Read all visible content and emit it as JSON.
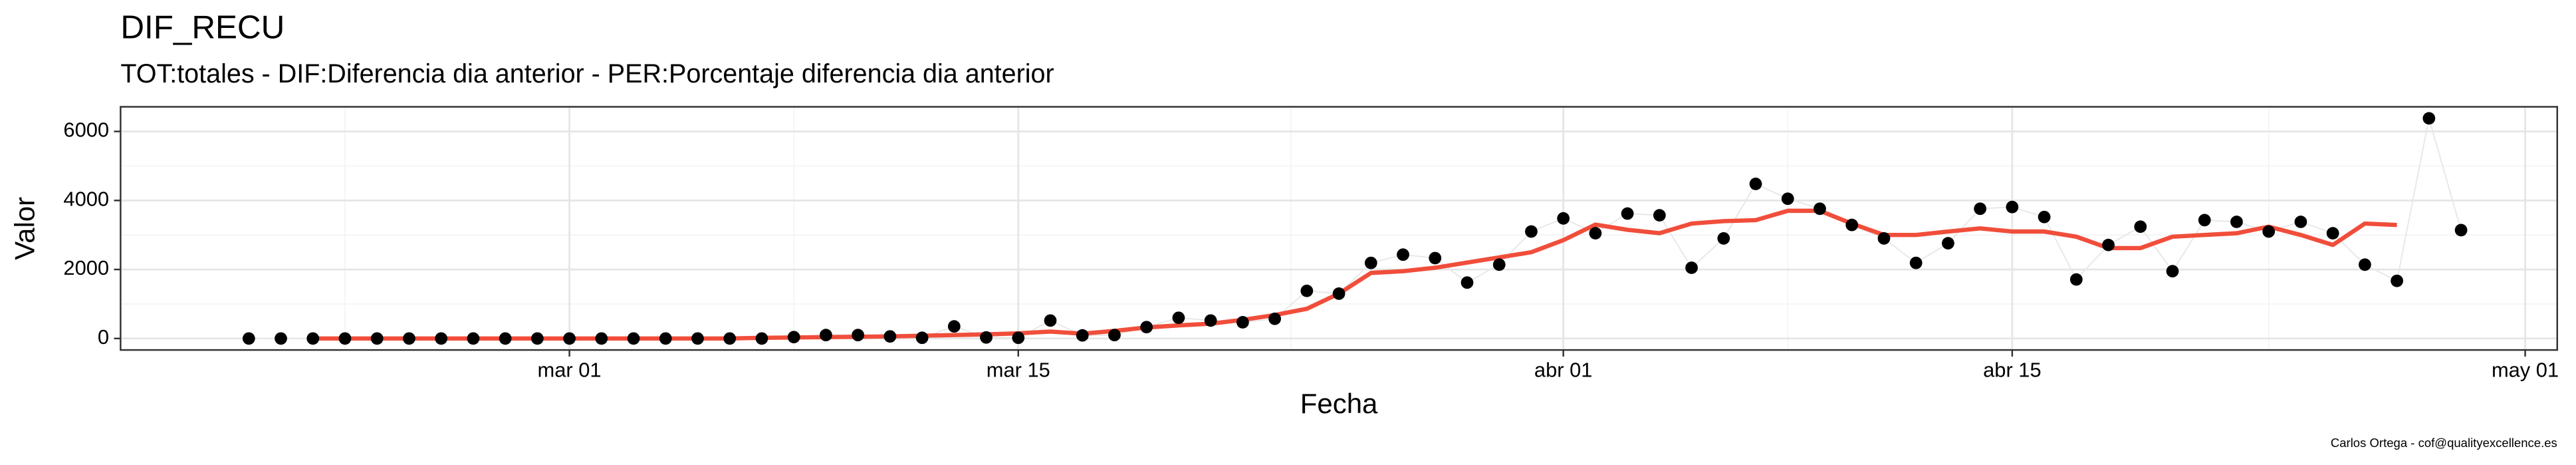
{
  "chart_data": {
    "type": "line",
    "title": "DIF_RECU",
    "subtitle": "TOT:totales - DIF:Diferencia dia anterior - PER:Porcentaje diferencia dia anterior",
    "x_label": "Fecha",
    "y_label": "Valor",
    "caption": "Carlos Ortega - cof@qualityexcellence.es",
    "x": [
      "02-20",
      "02-21",
      "02-22",
      "02-23",
      "02-24",
      "02-25",
      "02-26",
      "02-27",
      "02-28",
      "02-29",
      "03-01",
      "03-02",
      "03-03",
      "03-04",
      "03-05",
      "03-06",
      "03-07",
      "03-08",
      "03-09",
      "03-10",
      "03-11",
      "03-12",
      "03-13",
      "03-14",
      "03-15",
      "03-16",
      "03-17",
      "03-18",
      "03-19",
      "03-20",
      "03-21",
      "03-22",
      "03-23",
      "03-24",
      "03-25",
      "03-26",
      "03-27",
      "03-28",
      "03-29",
      "03-30",
      "03-31",
      "04-01",
      "04-02",
      "04-03",
      "04-04",
      "04-05",
      "04-06",
      "04-07",
      "04-08",
      "04-09",
      "04-10",
      "04-11",
      "04-12",
      "04-13",
      "04-14",
      "04-15",
      "04-16",
      "04-17",
      "04-18",
      "04-19",
      "04-20",
      "04-21",
      "04-22",
      "04-23",
      "04-24",
      "04-25",
      "04-26",
      "04-27",
      "04-28",
      "04-29"
    ],
    "series": [
      {
        "color": "#000000",
        "line_color": "#e8e8e8",
        "markers": true,
        "values": [
          0,
          0,
          0,
          0,
          0,
          0,
          0,
          0,
          0,
          0,
          0,
          0,
          0,
          0,
          0,
          0,
          0,
          40,
          100,
          100,
          60,
          20,
          350,
          30,
          20,
          520,
          90,
          100,
          330,
          600,
          520,
          470,
          570,
          1380,
          1300,
          2190,
          2430,
          2330,
          1620,
          2140,
          3100,
          3480,
          3050,
          3620,
          3570,
          2050,
          2900,
          4480,
          4050,
          3760,
          3290,
          2900,
          2190,
          2760,
          3760,
          3810,
          3520,
          1710,
          2710,
          3240,
          1950,
          3430,
          3380,
          3100,
          3380,
          3050,
          2140,
          1670,
          6380,
          3140
        ]
      },
      {
        "color": "#f04e3b",
        "markers": false,
        "values": [
          null,
          null,
          0,
          0,
          0,
          0,
          0,
          0,
          0,
          0,
          0,
          0,
          0,
          0,
          0,
          0,
          20,
          30,
          40,
          50,
          60,
          80,
          100,
          120,
          150,
          200,
          140,
          220,
          320,
          380,
          430,
          540,
          680,
          860,
          1300,
          1900,
          1950,
          2050,
          2200,
          2350,
          2500,
          2850,
          3300,
          3150,
          3050,
          3330,
          3400,
          3430,
          3700,
          3700,
          3330,
          3000,
          3000,
          3100,
          3190,
          3100,
          3100,
          2950,
          2620,
          2620,
          2950,
          3000,
          3050,
          3240,
          3000,
          2710,
          3330,
          3290,
          null,
          null
        ]
      }
    ],
    "xlim": [
      "02-16",
      "05-02"
    ],
    "xticks": [
      {
        "value": "03-01",
        "label": "mar 01"
      },
      {
        "value": "03-15",
        "label": "mar 15"
      },
      {
        "value": "04-01",
        "label": "abr 01"
      },
      {
        "value": "04-15",
        "label": "abr 15"
      },
      {
        "value": "05-01",
        "label": "may 01"
      }
    ],
    "ylim": [
      -333,
      6714
    ],
    "yticks": [
      0,
      2000,
      4000,
      6000
    ],
    "grid": true
  }
}
